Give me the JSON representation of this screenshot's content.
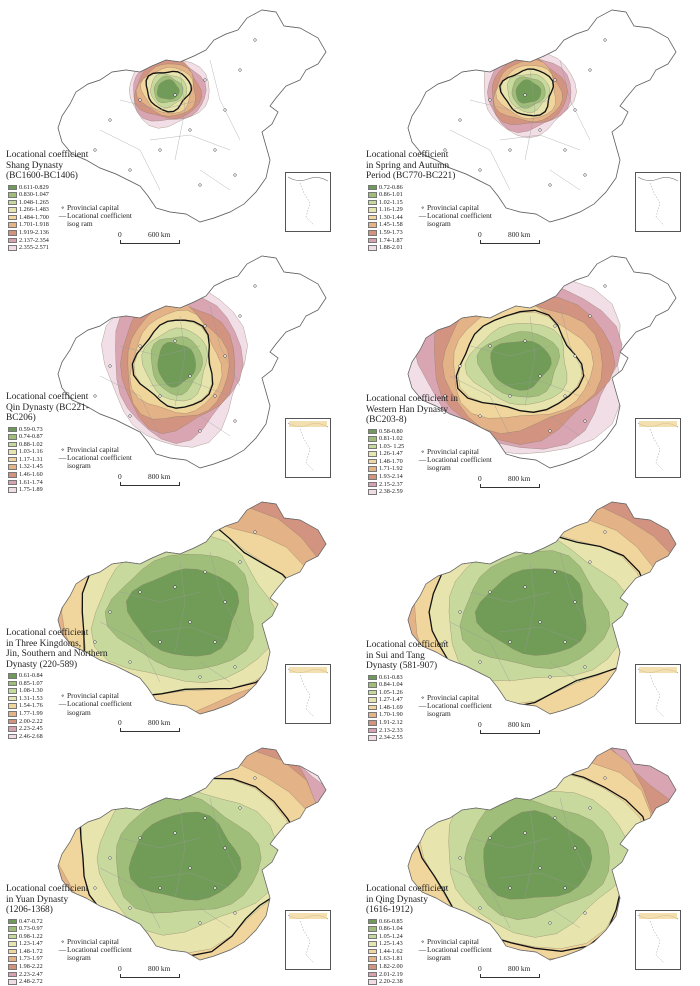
{
  "panels": [
    {
      "id": "shang",
      "title_lines": [
        "Locational coefficient",
        "Shang Dynasty",
        "(BC1600-BC1406)"
      ],
      "legend": [
        "0.611-0.829",
        "0.830-1.047",
        "1.048-1.265",
        "1.266-1.483",
        "1.484-1.700",
        "1.701-1.918",
        "1.919-2.136",
        "2.137-2.354",
        "2.355-2.571"
      ],
      "note_capital": "Provincial capital",
      "note_isogram_lines": [
        "Locational coefficient",
        "isog ram"
      ],
      "scale_zero": "0",
      "scale_label": "600  km",
      "core_levels": 5,
      "extent": "shang"
    },
    {
      "id": "spring_autumn",
      "title_lines": [
        "Locational coefficient",
        "in Spring and Autumn",
        "Period (BC770-BC221)"
      ],
      "legend": [
        "0.72-0.86",
        "0.86-1.01",
        "1.02-1.15",
        "1.16-1.29",
        "1.30-1.44",
        "1.45-1.58",
        "1.59-1.73",
        "1.74-1.87",
        "1.88-2.01"
      ],
      "note_capital": "Provincial capital",
      "note_isogram_lines": [
        "Locational coefficient",
        "isogram"
      ],
      "scale_zero": "0",
      "scale_label": "800 km",
      "core_levels": 5,
      "extent": "spring"
    },
    {
      "id": "qin",
      "title_lines": [
        "Locational coefficient",
        "Qin Dynasty (BC221-",
        "BC206)"
      ],
      "legend": [
        "0.59-0.73",
        "0.74-0.87",
        "0.88-1.02",
        "1.03-1.16",
        "1.17-1.31",
        "1.32-1.45",
        "1.46-1.60",
        "1.61-1.74",
        "1.75-1.89"
      ],
      "note_capital": "Provincial capital",
      "note_isogram_lines": [
        "Locational coefficient",
        "isogram"
      ],
      "scale_zero": "0",
      "scale_label": "800 km",
      "core_levels": 5,
      "extent": "qin"
    },
    {
      "id": "western_han",
      "title_lines": [
        "Locational coefficient in",
        "Western Han Dynasty",
        "(BC203-8)"
      ],
      "legend": [
        "0.58-0.80",
        "0.81-1.02",
        "1.03- 1.25",
        "1.26-1.47",
        "1.48-1.70",
        "1.71-1.92",
        "1.93-2.14",
        "2.15-2.37",
        "2.38-2.59"
      ],
      "note_capital": "Provincial capital",
      "note_isogram_lines": [
        "Locational coefficient",
        "isogram"
      ],
      "scale_zero": "0",
      "scale_label": "800 km",
      "core_levels": 6,
      "extent": "han"
    },
    {
      "id": "three_kingdoms",
      "title_lines": [
        "Locational coefficient",
        "in Three Kingdoms,",
        "Jin, Southern and Northern",
        "Dynasty (220-589)"
      ],
      "legend": [
        "0.61-0.84",
        "0.85-1.07",
        "1.08-1.30",
        "1.31-1.53",
        "1.54-1.76",
        "1.77-1.99",
        "2.00-2.22",
        "2.23-2.45",
        "2.46-2.68"
      ],
      "note_capital": "Provincial capital",
      "note_isogram_lines": [
        "Locational coefficient",
        "isogram"
      ],
      "scale_zero": "0",
      "scale_label": "800 km",
      "core_levels": 6,
      "extent": "full"
    },
    {
      "id": "sui_tang",
      "title_lines": [
        "Locational coefficient",
        "in Sui and Tang",
        "Dynasty (581-907)"
      ],
      "legend": [
        "0.61-0.83",
        "0.84-1.04",
        "1.05-1.26",
        "1.27-1.47",
        "1.48-1.69",
        "1.70-1.90",
        "1.91-2.12",
        "2.13-2.33",
        "2.34-2.55"
      ],
      "note_capital": "Provincial capital",
      "note_isogram_lines": [
        "Locational coefficient",
        "isogram"
      ],
      "scale_zero": "0",
      "scale_label": "800 km",
      "core_levels": 6,
      "extent": "full"
    },
    {
      "id": "yuan",
      "title_lines": [
        "Locational coefficient",
        "in Yuan Dynasty",
        "(1206-1368)"
      ],
      "legend": [
        "0.47-0.72",
        "0.73-0.97",
        "0.98-1.22",
        "1.23-1.47",
        "1.48-1.72",
        "1.73-1.97",
        "1.98-2.22",
        "2.23-2.47",
        "2.48-2.72"
      ],
      "note_capital": "Provincial capital",
      "note_isogram_lines": [
        "Locational coefficient",
        "isogram"
      ],
      "scale_zero": "0",
      "scale_label": "800 km",
      "core_levels": 6,
      "extent": "full"
    },
    {
      "id": "qing",
      "title_lines": [
        "Locational coefficient",
        "in Qing Dynasty",
        "(1616-1912)"
      ],
      "legend": [
        "0.66-0.85",
        "0.86-1.04",
        "1.05-1.24",
        "1.25-1.43",
        "1.44-1.62",
        "1.63-1.81",
        "1.82-2.00",
        "2.01-2.19",
        "2.20-2.38"
      ],
      "note_capital": "Provincial capital",
      "note_isogram_lines": [
        "Locational coefficient",
        "isogram"
      ],
      "scale_zero": "0",
      "scale_label": "800 km",
      "core_levels": 6,
      "extent": "full"
    }
  ],
  "palette": [
    "#6f9a57",
    "#9dbd78",
    "#c6d99c",
    "#e6e6ae",
    "#f1d79d",
    "#e4b487",
    "#d2937e",
    "#d7a2b0",
    "#f1dde6"
  ]
}
